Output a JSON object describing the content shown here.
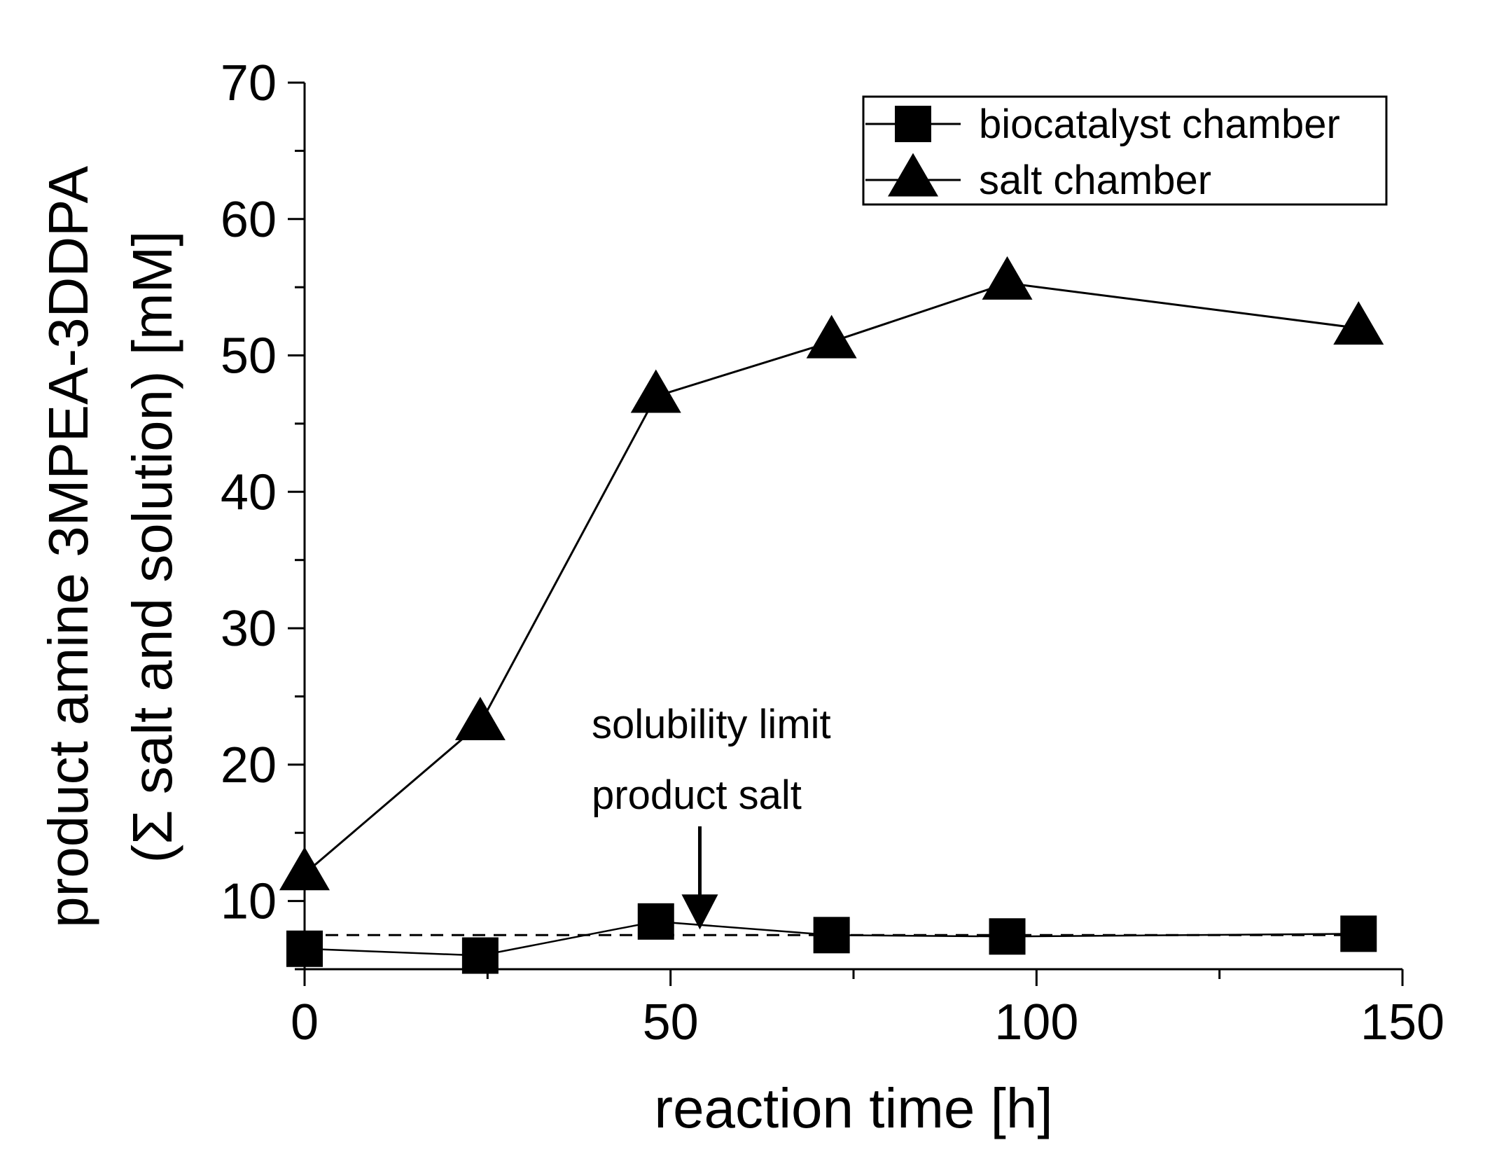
{
  "chart_data": {
    "type": "line",
    "title": "",
    "xlabel": "reaction time [h]",
    "ylabel_line1": "product amine 3MPEA-3DDPA",
    "ylabel_line2": "(Σ salt and solution) [mM]",
    "xlim": [
      0,
      150
    ],
    "ylim": [
      5,
      70
    ],
    "x_ticks": [
      0,
      50,
      100,
      150
    ],
    "y_ticks": [
      10,
      20,
      30,
      40,
      50,
      60,
      70
    ],
    "x_minor_step": 25,
    "y_minor_step": 5,
    "grid": false,
    "legend_position": "top-right",
    "series": [
      {
        "name": "biocatalyst chamber",
        "marker": "square",
        "color": "#000000",
        "x": [
          0,
          24,
          48,
          72,
          96,
          144
        ],
        "y": [
          6.5,
          6.0,
          8.5,
          7.5,
          7.4,
          7.6
        ]
      },
      {
        "name": "salt chamber",
        "marker": "triangle",
        "color": "#000000",
        "x": [
          0,
          24,
          48,
          72,
          96,
          144
        ],
        "y": [
          12.0,
          23.0,
          47.0,
          51.0,
          55.3,
          52.0
        ]
      }
    ],
    "reference_line": {
      "y": 7.5,
      "style": "dashed",
      "x_range": [
        0,
        144
      ]
    },
    "annotation": {
      "line1": "solubility limit",
      "line2": "product salt",
      "arrow_x": 54,
      "arrow_to_y": 7.5
    }
  }
}
